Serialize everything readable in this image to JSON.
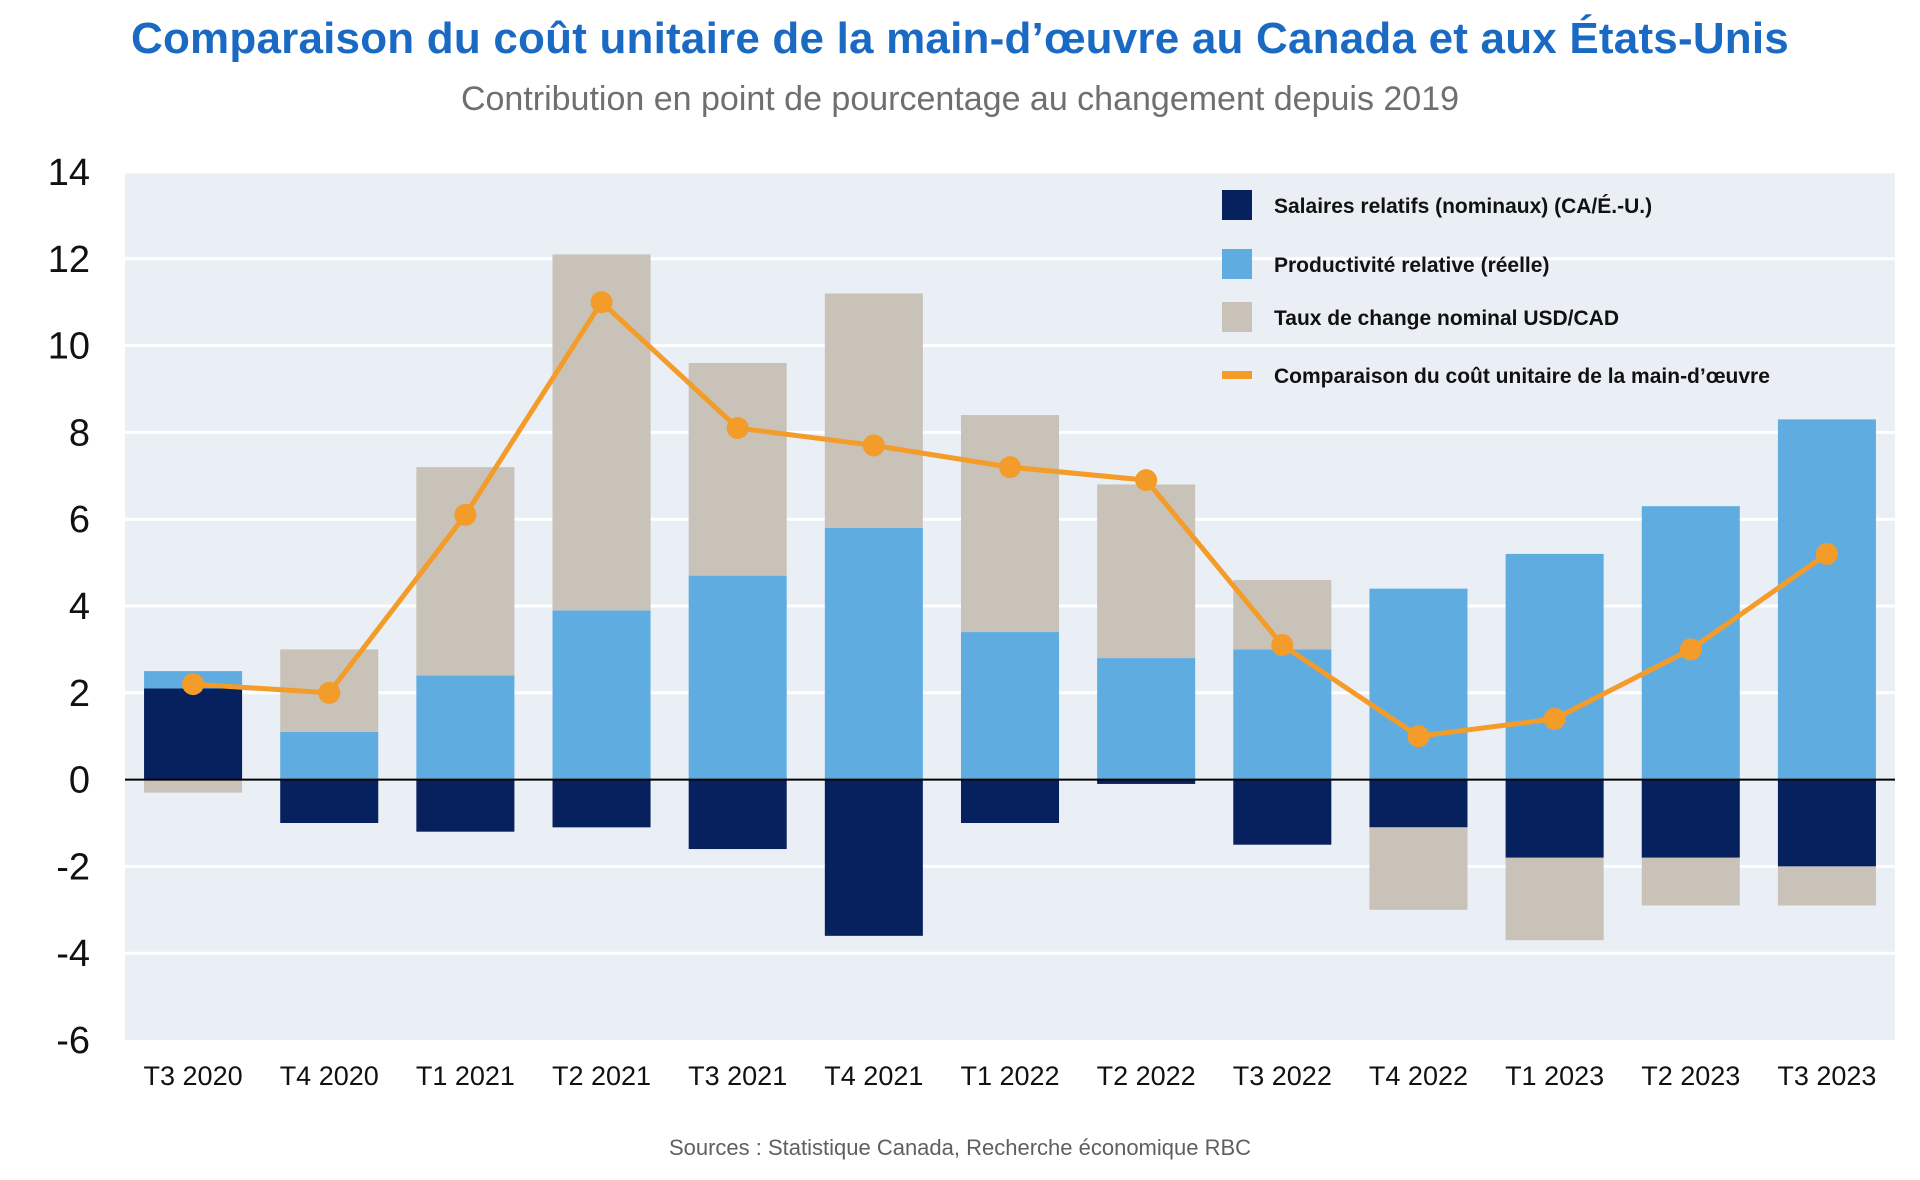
{
  "title": "Comparaison du coût unitaire de la main-d’œuvre au Canada et aux États-Unis",
  "subtitle": "Contribution en point de pourcentage au changement depuis 2019",
  "sources": "Sources : Statistique Canada, Recherche économique RBC",
  "chart_data": {
    "type": "bar",
    "stacked": true,
    "categories": [
      "T3 2020",
      "T4 2020",
      "T1 2021",
      "T2 2021",
      "T3 2021",
      "T4 2021",
      "T1 2022",
      "T2 2022",
      "T3 2022",
      "T4 2022",
      "T1 2023",
      "T2 2023",
      "T3 2023"
    ],
    "ylim": [
      -6,
      14
    ],
    "yticks": [
      -6,
      -4,
      -2,
      0,
      2,
      4,
      6,
      8,
      10,
      12,
      14
    ],
    "ytick_labels": [
      "-6",
      "-4",
      "-2",
      "0",
      "2",
      "4",
      "6",
      "8",
      "10",
      "12",
      "14"
    ],
    "grid": true,
    "legend_position": "top-right",
    "series": [
      {
        "name": "Salaires relatifs (nominaux) (CA/É.-U.)",
        "type": "bar",
        "color": "#06215e",
        "values": [
          2.1,
          -1.0,
          -1.2,
          -1.1,
          -1.6,
          -3.6,
          -1.0,
          -0.1,
          -1.5,
          -1.1,
          -1.8,
          -1.8,
          -2.0
        ]
      },
      {
        "name": "Productivité relative (réelle)",
        "type": "bar",
        "color": "#5fade0",
        "values": [
          0.4,
          1.1,
          2.4,
          3.9,
          4.7,
          5.8,
          3.4,
          2.8,
          3.0,
          4.4,
          5.2,
          6.3,
          8.3
        ]
      },
      {
        "name": "Taux de change nominal USD/CAD",
        "type": "bar",
        "color": "#c8c2b9",
        "values": [
          -0.3,
          1.9,
          4.8,
          8.2,
          4.9,
          5.4,
          5.0,
          4.0,
          1.6,
          -1.9,
          -1.9,
          -1.1,
          -0.9
        ]
      },
      {
        "name": "Comparaison du coût unitaire de la main-d’œuvre",
        "type": "line",
        "color": "#f39c2a",
        "values": [
          2.2,
          2.0,
          6.1,
          11.0,
          8.1,
          7.7,
          7.2,
          6.9,
          3.1,
          1.0,
          1.4,
          3.0,
          5.2
        ]
      }
    ]
  }
}
